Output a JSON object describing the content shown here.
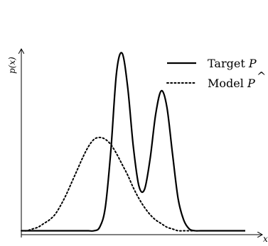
{
  "chart_data": {
    "type": "line",
    "title": "",
    "xlabel": "x",
    "ylabel": "p(x)",
    "xlim": [
      0,
      10
    ],
    "ylim": [
      0,
      1
    ],
    "grid": false,
    "legend_position": "top-right",
    "x": [
      0.0,
      0.25,
      0.5,
      0.75,
      1.0,
      1.25,
      1.5,
      1.75,
      2.0,
      2.25,
      2.5,
      2.75,
      3.0,
      3.25,
      3.5,
      3.75,
      4.0,
      4.25,
      4.5,
      4.75,
      5.0,
      5.25,
      5.5,
      5.75,
      6.0,
      6.25,
      6.5,
      6.75,
      7.0,
      7.25,
      7.5,
      7.75,
      8.0,
      8.25,
      8.5,
      8.75,
      9.0,
      9.25,
      9.5,
      9.75,
      10.0
    ],
    "series": [
      {
        "name": "Target P",
        "style": "solid",
        "color": "#000000",
        "values": [
          0.01,
          0.01,
          0.01,
          0.01,
          0.01,
          0.01,
          0.01,
          0.01,
          0.01,
          0.01,
          0.01,
          0.01,
          0.01,
          0.01,
          0.03,
          0.14,
          0.46,
          0.89,
          1.0,
          0.81,
          0.48,
          0.26,
          0.24,
          0.41,
          0.66,
          0.79,
          0.7,
          0.44,
          0.19,
          0.07,
          0.02,
          0.01,
          0.01,
          0.01,
          0.01,
          0.01,
          0.01,
          0.01,
          0.01,
          0.01,
          0.01
        ]
      },
      {
        "name": "Model P-hat",
        "style": "dotted",
        "color": "#000000",
        "values": [
          0.01,
          0.01,
          0.02,
          0.03,
          0.05,
          0.07,
          0.1,
          0.15,
          0.21,
          0.28,
          0.35,
          0.42,
          0.48,
          0.52,
          0.53,
          0.52,
          0.49,
          0.44,
          0.38,
          0.32,
          0.25,
          0.19,
          0.14,
          0.1,
          0.07,
          0.05,
          0.03,
          0.02,
          0.01,
          0.01,
          0.01,
          0.01,
          0.01,
          0.01,
          0.01,
          0.01,
          0.01,
          0.01,
          0.01,
          0.01,
          0.01
        ]
      }
    ]
  },
  "legend": {
    "target_label": "Target ",
    "target_symbol": "P",
    "model_label": "Model ",
    "model_symbol": "P",
    "model_accent": "^"
  }
}
